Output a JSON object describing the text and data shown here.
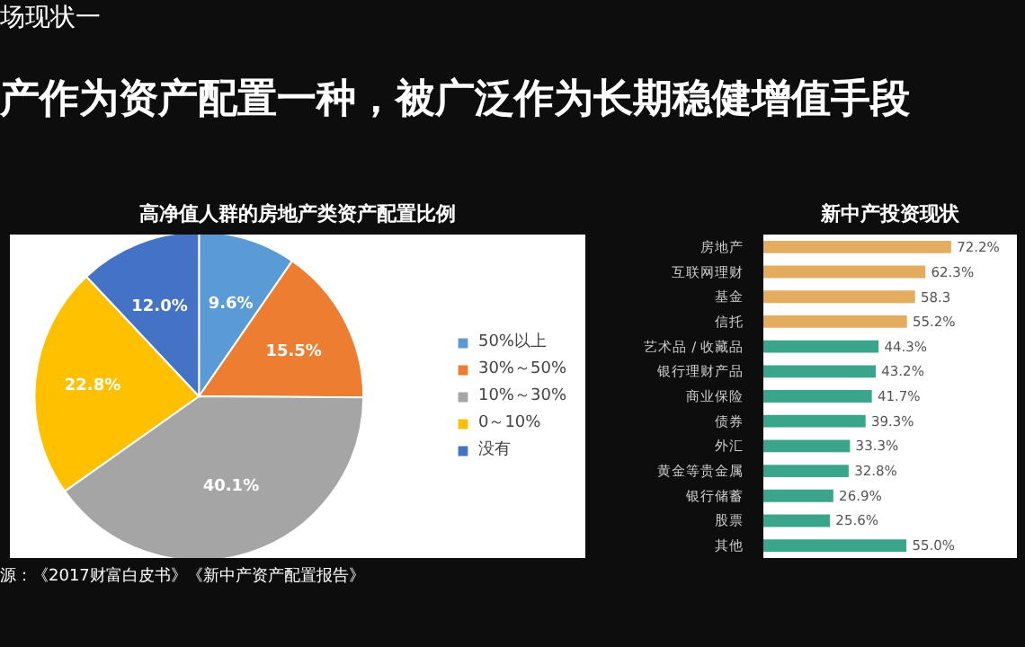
{
  "chart_data": [
    {
      "type": "pie",
      "title": "高净值人群的房地产类资产配置比例",
      "annotations": [
        "场现状一",
        "产作为资产配置一种，被广泛作为长期稳健增值手段",
        "源：《2017财富白皮书》《新中产资产配置报告》"
      ],
      "categories": [
        "50%以上",
        "30%～50%",
        "10%～30%",
        "0～10%",
        "没有"
      ],
      "values": [
        9.6,
        15.5,
        40.1,
        22.8,
        12.0
      ],
      "value_labels": [
        "9.6%",
        "15.5%",
        "40.1%",
        "22.8%",
        "12.0%"
      ],
      "colors": [
        "#5b9bd5",
        "#ed7d31",
        "#a5a5a5",
        "#ffc000",
        "#4472c4"
      ],
      "legend": "right"
    },
    {
      "type": "bar",
      "orientation": "horizontal",
      "title": "新中产投资现状",
      "categories": [
        "房地产",
        "互联网理财",
        "基金",
        "信托",
        "艺术品 / 收藏品",
        "银行理财产品",
        "商业保险",
        "债券",
        "外汇",
        "黄金等贵金属",
        "银行储蓄",
        "股票",
        "其他"
      ],
      "values": [
        72.2,
        62.3,
        58.3,
        55.2,
        44.3,
        43.2,
        41.7,
        39.3,
        33.3,
        32.8,
        26.9,
        25.6,
        55.0
      ],
      "value_labels": [
        "72.2%",
        "62.3%",
        "58.3",
        "55.2%",
        "44.3%",
        "43.2%",
        "41.7%",
        "39.3%",
        "33.3%",
        "32.8%",
        "26.9%",
        "25.6%",
        "55.0%"
      ],
      "colors": [
        "#e3ac5f",
        "#e3ac5f",
        "#e3ac5f",
        "#e3ac5f",
        "#3aa58a",
        "#3aa58a",
        "#3aa58a",
        "#3aa58a",
        "#3aa58a",
        "#3aa58a",
        "#3aa58a",
        "#3aa58a",
        "#3aa58a"
      ]
    }
  ]
}
